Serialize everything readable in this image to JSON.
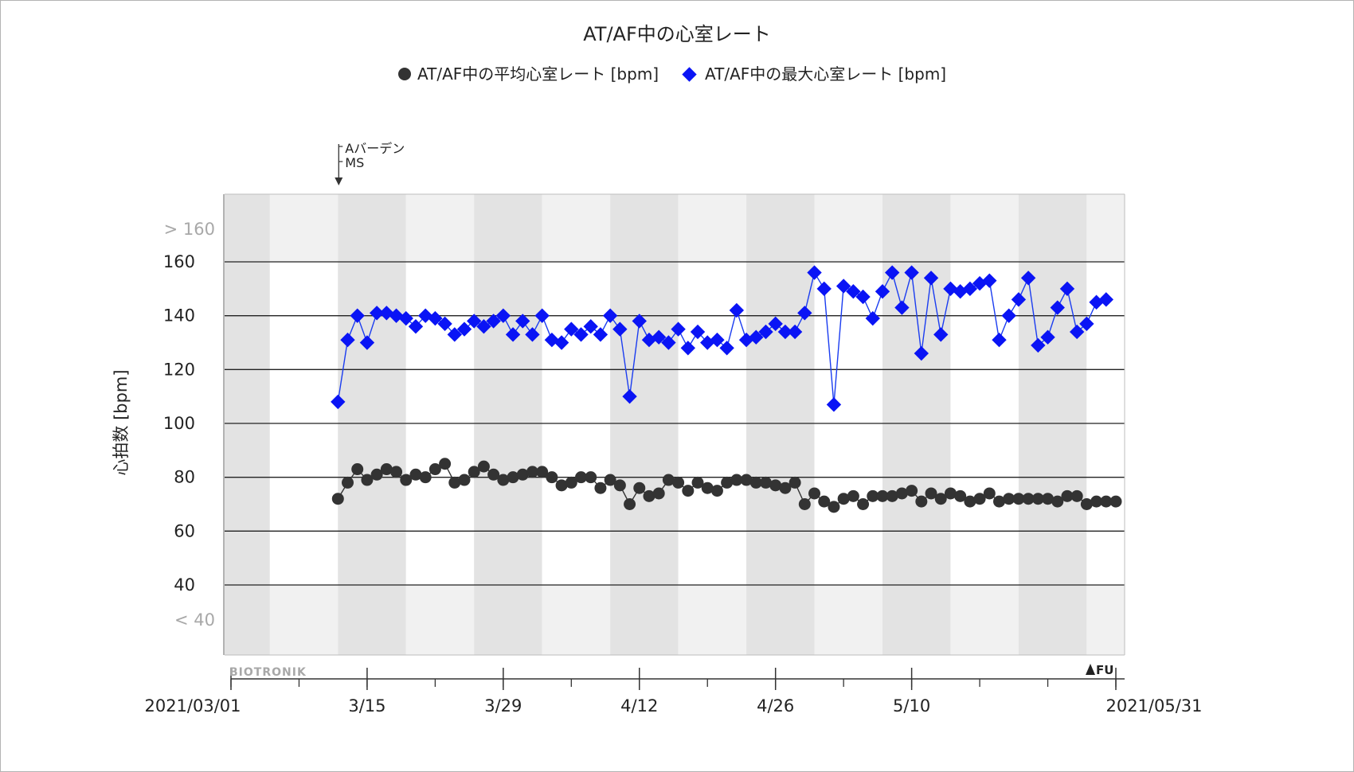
{
  "chart_data": {
    "type": "line",
    "title": "AT/AF中の心室レート",
    "ylabel": "心拍数 [bpm]",
    "xlabel": "",
    "x_start_label": "2021/03/01",
    "x_end_label": "2021/05/31",
    "x_range": [
      "2021-03-01",
      "2021-05-31"
    ],
    "x_ticks": [
      {
        "date": "2021-03-01",
        "label": "2021/03/01"
      },
      {
        "date": "2021-03-15",
        "label": "3/15"
      },
      {
        "date": "2021-03-29",
        "label": "3/29"
      },
      {
        "date": "2021-04-12",
        "label": "4/12"
      },
      {
        "date": "2021-04-26",
        "label": "4/26"
      },
      {
        "date": "2021-05-10",
        "label": "5/10"
      },
      {
        "date": "2021-05-31",
        "label": "2021/05/31"
      }
    ],
    "ylim": [
      40,
      160
    ],
    "y_ticks": [
      40,
      60,
      80,
      100,
      120,
      140,
      160
    ],
    "y_over_label": "> 160",
    "y_under_label": "< 40",
    "grid": true,
    "legend_position": "top-center",
    "series": [
      {
        "name": "AT/AF中の平均心室レート [bpm]",
        "marker": "circle",
        "color": "#333333",
        "line_color": "#333333",
        "points": [
          [
            "2021-03-12",
            72
          ],
          [
            "2021-03-13",
            78
          ],
          [
            "2021-03-14",
            83
          ],
          [
            "2021-03-15",
            79
          ],
          [
            "2021-03-16",
            81
          ],
          [
            "2021-03-17",
            83
          ],
          [
            "2021-03-18",
            82
          ],
          [
            "2021-03-19",
            79
          ],
          [
            "2021-03-20",
            81
          ],
          [
            "2021-03-21",
            80
          ],
          [
            "2021-03-22",
            83
          ],
          [
            "2021-03-23",
            85
          ],
          [
            "2021-03-24",
            78
          ],
          [
            "2021-03-25",
            79
          ],
          [
            "2021-03-26",
            82
          ],
          [
            "2021-03-27",
            84
          ],
          [
            "2021-03-28",
            81
          ],
          [
            "2021-03-29",
            79
          ],
          [
            "2021-03-30",
            80
          ],
          [
            "2021-03-31",
            81
          ],
          [
            "2021-04-01",
            82
          ],
          [
            "2021-04-02",
            82
          ],
          [
            "2021-04-03",
            80
          ],
          [
            "2021-04-04",
            77
          ],
          [
            "2021-04-05",
            78
          ],
          [
            "2021-04-06",
            80
          ],
          [
            "2021-04-07",
            80
          ],
          [
            "2021-04-08",
            76
          ],
          [
            "2021-04-09",
            79
          ],
          [
            "2021-04-10",
            77
          ],
          [
            "2021-04-11",
            70
          ],
          [
            "2021-04-12",
            76
          ],
          [
            "2021-04-13",
            73
          ],
          [
            "2021-04-14",
            74
          ],
          [
            "2021-04-15",
            79
          ],
          [
            "2021-04-16",
            78
          ],
          [
            "2021-04-17",
            75
          ],
          [
            "2021-04-18",
            78
          ],
          [
            "2021-04-19",
            76
          ],
          [
            "2021-04-20",
            75
          ],
          [
            "2021-04-21",
            78
          ],
          [
            "2021-04-22",
            79
          ],
          [
            "2021-04-23",
            79
          ],
          [
            "2021-04-24",
            78
          ],
          [
            "2021-04-25",
            78
          ],
          [
            "2021-04-26",
            77
          ],
          [
            "2021-04-27",
            76
          ],
          [
            "2021-04-28",
            78
          ],
          [
            "2021-04-29",
            70
          ],
          [
            "2021-04-30",
            74
          ],
          [
            "2021-05-01",
            71
          ],
          [
            "2021-05-02",
            69
          ],
          [
            "2021-05-03",
            72
          ],
          [
            "2021-05-04",
            73
          ],
          [
            "2021-05-05",
            70
          ],
          [
            "2021-05-06",
            73
          ],
          [
            "2021-05-07",
            73
          ],
          [
            "2021-05-08",
            73
          ],
          [
            "2021-05-09",
            74
          ],
          [
            "2021-05-10",
            75
          ],
          [
            "2021-05-11",
            71
          ],
          [
            "2021-05-12",
            74
          ],
          [
            "2021-05-13",
            72
          ],
          [
            "2021-05-14",
            74
          ],
          [
            "2021-05-15",
            73
          ],
          [
            "2021-05-16",
            71
          ],
          [
            "2021-05-17",
            72
          ],
          [
            "2021-05-18",
            74
          ],
          [
            "2021-05-19",
            71
          ],
          [
            "2021-05-20",
            72
          ],
          [
            "2021-05-21",
            72
          ],
          [
            "2021-05-22",
            72
          ],
          [
            "2021-05-23",
            72
          ],
          [
            "2021-05-24",
            72
          ],
          [
            "2021-05-25",
            71
          ],
          [
            "2021-05-26",
            73
          ],
          [
            "2021-05-27",
            73
          ],
          [
            "2021-05-28",
            70
          ],
          [
            "2021-05-29",
            71
          ],
          [
            "2021-05-30",
            71
          ],
          [
            "2021-05-31",
            71
          ]
        ]
      },
      {
        "name": "AT/AF中の最大心室レート [bpm]",
        "marker": "diamond",
        "color": "#0a14f5",
        "line_color": "#1a3cf0",
        "points": [
          [
            "2021-03-12",
            108
          ],
          [
            "2021-03-13",
            131
          ],
          [
            "2021-03-14",
            140
          ],
          [
            "2021-03-15",
            130
          ],
          [
            "2021-03-16",
            141
          ],
          [
            "2021-03-17",
            141
          ],
          [
            "2021-03-18",
            140
          ],
          [
            "2021-03-19",
            139
          ],
          [
            "2021-03-20",
            136
          ],
          [
            "2021-03-21",
            140
          ],
          [
            "2021-03-22",
            139
          ],
          [
            "2021-03-23",
            137
          ],
          [
            "2021-03-24",
            133
          ],
          [
            "2021-03-25",
            135
          ],
          [
            "2021-03-26",
            138
          ],
          [
            "2021-03-27",
            136
          ],
          [
            "2021-03-28",
            138
          ],
          [
            "2021-03-29",
            140
          ],
          [
            "2021-03-30",
            133
          ],
          [
            "2021-03-31",
            138
          ],
          [
            "2021-04-01",
            133
          ],
          [
            "2021-04-02",
            140
          ],
          [
            "2021-04-03",
            131
          ],
          [
            "2021-04-04",
            130
          ],
          [
            "2021-04-05",
            135
          ],
          [
            "2021-04-06",
            133
          ],
          [
            "2021-04-07",
            136
          ],
          [
            "2021-04-08",
            133
          ],
          [
            "2021-04-09",
            140
          ],
          [
            "2021-04-10",
            135
          ],
          [
            "2021-04-11",
            110
          ],
          [
            "2021-04-12",
            138
          ],
          [
            "2021-04-13",
            131
          ],
          [
            "2021-04-14",
            132
          ],
          [
            "2021-04-15",
            130
          ],
          [
            "2021-04-16",
            135
          ],
          [
            "2021-04-17",
            128
          ],
          [
            "2021-04-18",
            134
          ],
          [
            "2021-04-19",
            130
          ],
          [
            "2021-04-20",
            131
          ],
          [
            "2021-04-21",
            128
          ],
          [
            "2021-04-22",
            142
          ],
          [
            "2021-04-23",
            131
          ],
          [
            "2021-04-24",
            132
          ],
          [
            "2021-04-25",
            134
          ],
          [
            "2021-04-26",
            137
          ],
          [
            "2021-04-27",
            134
          ],
          [
            "2021-04-28",
            134
          ],
          [
            "2021-04-29",
            141
          ],
          [
            "2021-04-30",
            156
          ],
          [
            "2021-05-01",
            150
          ],
          [
            "2021-05-02",
            107
          ],
          [
            "2021-05-03",
            151
          ],
          [
            "2021-05-04",
            149
          ],
          [
            "2021-05-05",
            147
          ],
          [
            "2021-05-06",
            139
          ],
          [
            "2021-05-07",
            149
          ],
          [
            "2021-05-08",
            156
          ],
          [
            "2021-05-09",
            143
          ],
          [
            "2021-05-10",
            156
          ],
          [
            "2021-05-11",
            126
          ],
          [
            "2021-05-12",
            154
          ],
          [
            "2021-05-13",
            133
          ],
          [
            "2021-05-14",
            150
          ],
          [
            "2021-05-15",
            149
          ],
          [
            "2021-05-16",
            150
          ],
          [
            "2021-05-17",
            152
          ],
          [
            "2021-05-18",
            153
          ],
          [
            "2021-05-19",
            131
          ],
          [
            "2021-05-20",
            140
          ],
          [
            "2021-05-21",
            146
          ],
          [
            "2021-05-22",
            154
          ],
          [
            "2021-05-23",
            129
          ],
          [
            "2021-05-24",
            132
          ],
          [
            "2021-05-25",
            143
          ],
          [
            "2021-05-26",
            150
          ],
          [
            "2021-05-27",
            134
          ],
          [
            "2021-05-28",
            137
          ],
          [
            "2021-05-29",
            145
          ],
          [
            "2021-05-30",
            146
          ]
        ]
      }
    ],
    "event_marker": {
      "date": "2021-03-12",
      "labels": [
        "Aバーデン",
        "MS"
      ]
    },
    "branding": {
      "left": "BIOTRONIK",
      "right": "FU"
    },
    "colors": {
      "band_dark": "#e3e3e3",
      "band_light": "#f1f1f1",
      "band_white": "#ffffff",
      "gridline": "#222222",
      "axis": "#333333"
    }
  }
}
